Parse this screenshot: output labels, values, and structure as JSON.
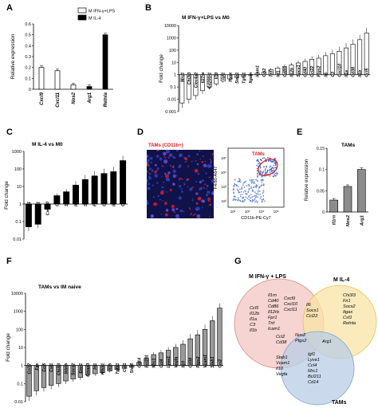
{
  "panels": {
    "A": "A",
    "B": "B",
    "C": "C",
    "D": "D",
    "E": "E",
    "F": "F",
    "G": "G"
  },
  "A": {
    "ylabel": "Relative expression",
    "legend": [
      {
        "label": "M IFN-γ+LPS",
        "fill": "#ffffff"
      },
      {
        "label": "M IL-4",
        "fill": "#000000"
      }
    ],
    "yticks": [
      "0",
      "0.1",
      "0.2",
      "0.3",
      "0.4",
      "0.5",
      "0.6"
    ]
  },
  "B": {
    "title": "M IFN-γ+LPS vs M0",
    "ylabel": "Fold change"
  },
  "C": {
    "title": "M IL-4 vs M0",
    "ylabel": "Fold change"
  },
  "D": {
    "title": "TAMs (CD11b+)",
    "gate_label": "TAMs",
    "xlabel": "CD11b-PE-Cy7",
    "ylabel": "F4/80-A647"
  },
  "E": {
    "title": "TAMs",
    "ylabel": "Relative expression"
  },
  "F": {
    "title": "TAMs vs IM naive",
    "ylabel": "Fold change"
  },
  "G": {
    "circle1": "M IFN-γ + LPS",
    "circle2": "M IL-4",
    "circle3": "TAMs",
    "colors": {
      "red": "#f3c5c1",
      "yellow": "#fae4a6",
      "blue": "#b8cde6"
    },
    "regions": {
      "ifn_only": "Il1rn\nCd40\nCd86\nIl12rb\nFpr1\nTnf\nIcam1",
      "ifn_left": "Ccl5\nIl12b\nIl1a\nC3\nIl1b",
      "ifn_il4": "Cxcl9\nCxcl10\nCxcl11",
      "ifn_il4_b": "Il6\nSocs1\nCcl22",
      "il4_only": "Chi3l3\nFn1\nSocs2\nItgax\nCsf1\nRetnla",
      "ifn_tam": "Ccl2\nCd38",
      "center": "Nos2\nPtgs2",
      "il4_tam": "Arg1",
      "tam_only": "Stab1\nVcam1\nIl10\nVegfa",
      "tam_only2": "Igf1\nLyve1\nCcl4\nMrc1\nBcl211\nCd14"
    }
  },
  "chart_data": [
    {
      "panel": "A",
      "type": "bar",
      "categories": [
        "Cxcl9",
        "Cxcl11",
        "Nos2",
        "Arg1",
        "Retnla"
      ],
      "series": [
        {
          "name": "M IFN-γ+LPS",
          "values": [
            0.2,
            0.17,
            0.04,
            0,
            0
          ]
        },
        {
          "name": "M IL-4",
          "values": [
            0,
            0,
            0,
            0.025,
            0.5
          ]
        }
      ],
      "ylim": [
        0,
        0.6
      ],
      "ylabel": "Relative expression"
    },
    {
      "panel": "B",
      "type": "bar",
      "scale": "log",
      "categories": [
        "Mrc1",
        "Chi3l3",
        "Clec4a2",
        "Il27ra",
        "Cd200r1",
        "Il10",
        "Igf1",
        "Itgax",
        "Stab1",
        "Tgfb1",
        "Itgam",
        "Icam1",
        "Ccl2",
        "Tnf",
        "Irf1",
        "Cd86",
        "Il12b",
        "Socs1",
        "Cd40",
        "Ccl22",
        "Ptgs2",
        "Il6",
        "C3",
        "Cxcl10",
        "Il1a",
        "Cd38",
        "Il1b",
        "Ccl5"
      ],
      "values": [
        0.005,
        0.01,
        0.02,
        0.05,
        0.1,
        0.18,
        0.3,
        0.45,
        0.6,
        0.75,
        0.9,
        1.3,
        1.6,
        2.5,
        3.5,
        4.5,
        6,
        9,
        12,
        18,
        22,
        35,
        50,
        80,
        150,
        300,
        700,
        2500
      ],
      "ylim": [
        0.001,
        10000
      ],
      "ylabel": "Fold change",
      "title": "M IFN-γ+LPS vs M0"
    },
    {
      "panel": "C",
      "type": "bar",
      "scale": "log",
      "categories": [
        "Stab1",
        "Fcgr1",
        "Cxcl10",
        "Csf1",
        "Socs1",
        "Itgax",
        "Socs2",
        "Fn1",
        "Ccl22",
        "Il6",
        "Chi3l3"
      ],
      "values": [
        0.05,
        0.07,
        0.5,
        3,
        5,
        12,
        25,
        40,
        55,
        70,
        300
      ],
      "ylim": [
        0.01,
        1000
      ],
      "ylabel": "Fold change",
      "title": "M IL-4 vs M0"
    },
    {
      "panel": "E",
      "type": "bar",
      "categories": [
        "Il1rn",
        "Nos2",
        "Arg1"
      ],
      "values": [
        0.028,
        0.06,
        0.1
      ],
      "ylim": [
        0,
        0.15
      ],
      "ylabel": "Relative expression",
      "title": "TAMs"
    },
    {
      "panel": "F",
      "type": "bar",
      "scale": "log",
      "categories": [
        "Ccl17",
        "Fas",
        "Ccl5",
        "Csf1",
        "Chi3l3",
        "Ikbkb",
        "Socs2",
        "Emr1",
        "Smad3",
        "Irf1",
        "Nfkb1",
        "Il1b",
        "Tgfb1",
        "Csf1",
        "Stat6",
        "Cd14",
        "Bcl211",
        "Mrc1",
        "Ccl4",
        "Lyve1",
        "Vegfa",
        "Il10",
        "Cd38",
        "Ptgs2",
        "Vcam1",
        "Stab1",
        "Ccl2"
      ],
      "values": [
        0.02,
        0.04,
        0.06,
        0.08,
        0.1,
        0.14,
        0.18,
        0.22,
        0.3,
        0.35,
        0.4,
        0.5,
        0.6,
        0.7,
        0.8,
        1.5,
        2.5,
        4,
        5,
        7,
        10,
        15,
        30,
        50,
        100,
        300,
        1500
      ],
      "ylim": [
        0.01,
        10000
      ],
      "ylabel": "Fold change",
      "title": "TAMs vs IM naive"
    }
  ]
}
